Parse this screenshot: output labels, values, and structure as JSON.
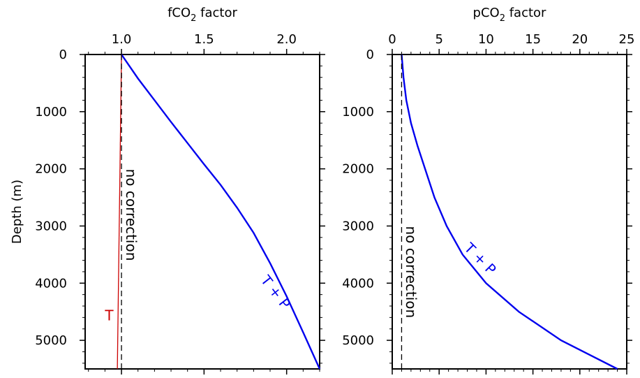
{
  "chart_data": [
    {
      "type": "line",
      "xlabel": "fCO",
      "xlabel_sub": "2",
      "xlabel_suffix": " factor",
      "ylabel": "Depth (m)",
      "xlim": [
        0.78,
        2.2
      ],
      "ylim": [
        5500,
        0
      ],
      "x_ticks": [
        1.0,
        1.5,
        2.0
      ],
      "x_tick_labels": [
        "1.0",
        "1.5",
        "2.0"
      ],
      "y_ticks": [
        0,
        1000,
        2000,
        3000,
        4000,
        5000
      ],
      "y_tick_labels": [
        "0",
        "1000",
        "2000",
        "3000",
        "4000",
        "5000"
      ],
      "series": [
        {
          "name": "T + P",
          "color": "#0000ee",
          "x": [
            1.0,
            1.1,
            1.2,
            1.3,
            1.4,
            1.5,
            1.6,
            1.7,
            1.8,
            1.9,
            2.0,
            2.1,
            2.2
          ],
          "y": [
            0,
            420,
            800,
            1180,
            1550,
            1920,
            2280,
            2680,
            3120,
            3650,
            4230,
            4860,
            5500
          ]
        },
        {
          "name": "T",
          "color": "#cc0000",
          "x": [
            1.0,
            0.975
          ],
          "y": [
            0,
            5500
          ]
        },
        {
          "name": "no correction",
          "color": "#000000",
          "dashed": true,
          "x": [
            1.0,
            1.0
          ],
          "y": [
            0,
            5500
          ]
        }
      ],
      "annotations": [
        {
          "text": "no correction",
          "color": "#000000",
          "x": 1.03,
          "y": 2000
        },
        {
          "text": "T + P",
          "color": "#0000ee",
          "x": 1.84,
          "y": 3950
        },
        {
          "text": "T",
          "color": "#cc0000",
          "x": 0.9,
          "y": 4650
        }
      ]
    },
    {
      "type": "line",
      "xlabel": "pCO",
      "xlabel_sub": "2",
      "xlabel_suffix": " factor",
      "ylabel": "",
      "xlim": [
        0,
        25
      ],
      "ylim": [
        5500,
        0
      ],
      "x_ticks": [
        0,
        5,
        10,
        15,
        20,
        25
      ],
      "x_tick_labels": [
        "0",
        "5",
        "10",
        "15",
        "20",
        "25"
      ],
      "y_ticks": [
        0,
        1000,
        2000,
        3000,
        4000,
        5000
      ],
      "y_tick_labels": [
        "0",
        "1000",
        "2000",
        "3000",
        "4000",
        "5000"
      ],
      "series": [
        {
          "name": "T + P",
          "color": "#0000ee",
          "x": [
            1.0,
            1.25,
            1.6,
            2.1,
            2.7,
            3.5,
            4.5,
            5.8,
            7.5,
            9.8,
            13.2,
            18.0,
            24.0
          ],
          "y": [
            0,
            500,
            1000,
            1500,
            2000,
            2500,
            3000,
            3500,
            4000,
            4500,
            5000,
            5000,
            5500
          ]
        },
        {
          "name": "no correction",
          "color": "#000000",
          "dashed": true,
          "x": [
            1.0,
            1.0
          ],
          "y": [
            0,
            5500
          ]
        }
      ],
      "annotations": [
        {
          "text": "no correction",
          "color": "#000000",
          "x": 1.5,
          "y": 3000
        },
        {
          "text": "T + P",
          "color": "#0000ee",
          "x": 7.6,
          "y": 3400
        }
      ]
    }
  ]
}
